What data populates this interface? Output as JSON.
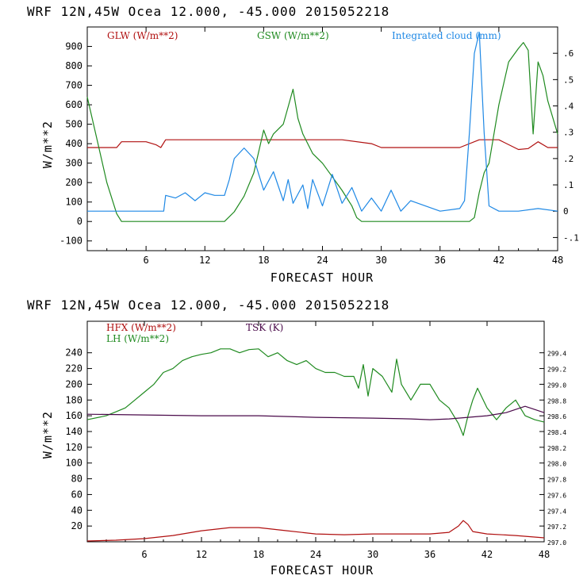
{
  "colors": {
    "red": "#b01010",
    "green": "#1f8a1f",
    "blue": "#1e88e5",
    "purple": "#4a0a4a",
    "axis": "#000000"
  },
  "chart_data": [
    {
      "type": "line",
      "header": "WRF  12N,45W Ocea  12.000, -45.000  2015052218",
      "xlabel": "FORECAST HOUR",
      "ylabel": "W/m**2",
      "xlim": [
        0,
        48
      ],
      "xticks": [
        "6",
        "12",
        "18",
        "24",
        "30",
        "36",
        "42",
        "48"
      ],
      "ylim": [
        -150,
        1000
      ],
      "yticks": [
        "-100",
        "0",
        "100",
        "200",
        "300",
        "400",
        "500",
        "600",
        "700",
        "800",
        "900"
      ],
      "y2lim": [
        -0.15,
        0.7
      ],
      "y2ticks": [
        "-.1",
        "0",
        ".1",
        ".2",
        ".3",
        ".4",
        ".5",
        ".6"
      ],
      "series": [
        {
          "name": "GLW (W/m**2)",
          "color": "red",
          "axis": "left",
          "x": [
            0,
            3,
            3.5,
            6,
            7,
            7.5,
            8,
            14,
            24,
            26,
            29,
            30,
            32,
            35,
            38,
            40,
            42,
            44,
            45,
            46,
            47,
            48
          ],
          "y": [
            380,
            380,
            410,
            410,
            395,
            380,
            420,
            420,
            420,
            420,
            400,
            380,
            380,
            380,
            380,
            420,
            420,
            370,
            375,
            410,
            380,
            380
          ]
        },
        {
          "name": "GSW (W/m**2)",
          "color": "green",
          "axis": "left",
          "x": [
            0,
            1,
            2,
            3,
            3.5,
            14,
            15,
            16,
            17,
            18,
            18.5,
            19,
            20,
            20.5,
            21,
            21.5,
            22,
            23,
            24,
            25,
            26,
            27,
            27.5,
            28,
            29,
            30,
            36,
            38,
            39,
            39.5,
            40,
            40.5,
            41,
            42,
            43,
            44,
            44.5,
            45,
            45.5,
            46,
            46.5,
            47,
            48
          ],
          "y": [
            640,
            420,
            200,
            40,
            0,
            0,
            50,
            130,
            250,
            470,
            400,
            450,
            500,
            590,
            680,
            530,
            450,
            350,
            300,
            230,
            160,
            80,
            20,
            0,
            0,
            0,
            0,
            0,
            0,
            20,
            150,
            250,
            300,
            600,
            820,
            890,
            920,
            880,
            450,
            820,
            750,
            620,
            450
          ]
        },
        {
          "name": "Integrated cloud (mm)",
          "color": "blue",
          "axis": "right",
          "x": [
            0,
            3,
            5,
            7.8,
            8,
            9,
            10,
            11,
            12,
            13,
            14,
            14.5,
            15,
            16,
            17,
            18,
            19,
            20,
            20.5,
            21,
            22,
            22.5,
            23,
            24,
            25,
            26,
            27,
            28,
            29,
            30,
            31,
            32,
            33,
            36,
            38,
            38.5,
            39,
            39.5,
            40,
            40.5,
            41,
            42,
            44,
            46,
            48
          ],
          "y": [
            0,
            0,
            0,
            0,
            0.06,
            0.05,
            0.07,
            0.04,
            0.07,
            0.06,
            0.06,
            0.12,
            0.2,
            0.24,
            0.2,
            0.08,
            0.15,
            0.04,
            0.12,
            0.03,
            0.1,
            0.01,
            0.12,
            0.02,
            0.14,
            0.03,
            0.09,
            0,
            0.05,
            0,
            0.08,
            0,
            0.04,
            0,
            0.01,
            0.04,
            0.3,
            0.6,
            0.68,
            0.3,
            0.02,
            0,
            0,
            0.01,
            0
          ]
        }
      ],
      "legend": [
        "GLW (W/m**2)",
        "GSW (W/m**2)",
        "Integrated cloud (mm)"
      ],
      "legend_position": "top"
    },
    {
      "type": "line",
      "header": "WRF  12N,45W Ocea  12.000, -45.000  2015052218",
      "xlabel": "FORECAST HOUR",
      "ylabel": "W/m**2",
      "xlim": [
        0,
        48
      ],
      "xticks": [
        "6",
        "12",
        "18",
        "24",
        "30",
        "36",
        "42",
        "48"
      ],
      "ylim": [
        0,
        280
      ],
      "yticks": [
        "20",
        "40",
        "60",
        "80",
        "100",
        "120",
        "140",
        "160",
        "180",
        "200",
        "220",
        "240"
      ],
      "y2lim": [
        297.0,
        299.8
      ],
      "y2ticks": [
        "297.0",
        "297.2",
        "297.4",
        "297.6",
        "297.8",
        "298.0",
        "298.2",
        "298.4",
        "298.6",
        "298.8",
        "299.0",
        "299.2",
        "299.4"
      ],
      "series": [
        {
          "name": "HFX (W/m**2)",
          "color": "red",
          "axis": "left",
          "x": [
            0,
            3,
            6,
            9,
            12,
            15,
            18,
            21,
            24,
            27,
            30,
            33,
            36,
            38,
            39,
            39.5,
            40,
            40.5,
            42,
            45,
            48
          ],
          "y": [
            1,
            2,
            4,
            8,
            14,
            18,
            18,
            14,
            10,
            9,
            10,
            10,
            10,
            12,
            20,
            27,
            22,
            13,
            10,
            8,
            5
          ]
        },
        {
          "name": "LH (W/m**2)",
          "color": "green",
          "axis": "left",
          "x": [
            0,
            2,
            3,
            4,
            5,
            6,
            7,
            8,
            9,
            10,
            11,
            12,
            13,
            14,
            15,
            16,
            17,
            18,
            19,
            20,
            21,
            22,
            23,
            24,
            25,
            26,
            27,
            28,
            28.5,
            29,
            29.5,
            30,
            31,
            32,
            32.5,
            33,
            34,
            35,
            36,
            37,
            38,
            39,
            39.5,
            40,
            40.5,
            41,
            42,
            43,
            44,
            45,
            46,
            47,
            48
          ],
          "y": [
            155,
            160,
            165,
            170,
            180,
            190,
            200,
            215,
            220,
            230,
            235,
            238,
            240,
            245,
            245,
            240,
            244,
            245,
            235,
            240,
            230,
            225,
            230,
            220,
            215,
            215,
            210,
            210,
            195,
            225,
            185,
            220,
            210,
            190,
            232,
            200,
            180,
            200,
            200,
            180,
            170,
            150,
            135,
            160,
            180,
            195,
            170,
            155,
            170,
            180,
            160,
            155,
            152
          ]
        },
        {
          "name": "TSK (K)",
          "color": "purple",
          "axis": "right",
          "x": [
            0,
            6,
            12,
            18,
            24,
            30,
            34,
            36,
            38,
            40,
            42,
            44,
            45,
            46,
            47,
            48
          ],
          "y": [
            298.62,
            298.61,
            298.6,
            298.6,
            298.58,
            298.57,
            298.56,
            298.55,
            298.56,
            298.58,
            298.6,
            298.64,
            298.68,
            298.72,
            298.68,
            298.64
          ]
        }
      ],
      "legend": [
        "HFX (W/m**2)",
        "LH (W/m**2)",
        "TSK (K)"
      ],
      "legend_position": "top-left"
    }
  ]
}
